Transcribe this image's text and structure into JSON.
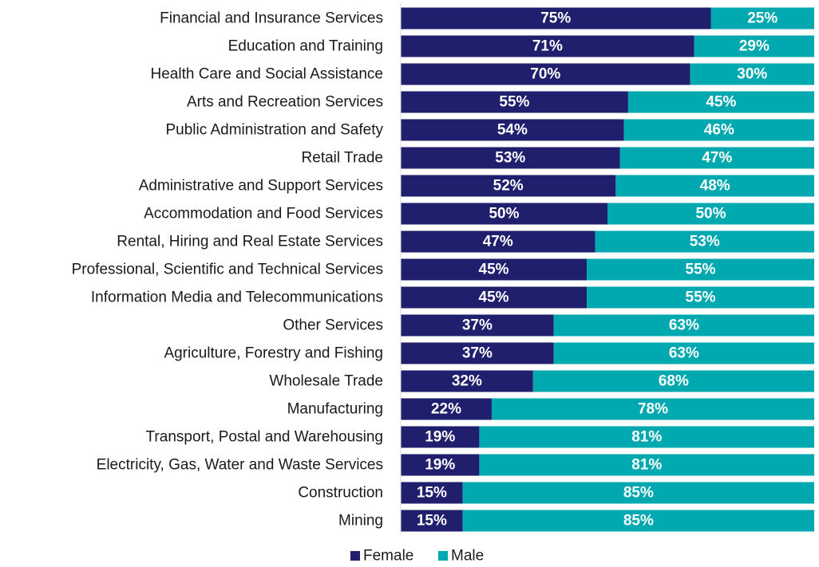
{
  "chart_data": {
    "type": "bar",
    "orientation": "horizontal",
    "stacked": true,
    "categories": [
      "Financial and Insurance Services",
      "Education and Training",
      "Health Care and Social Assistance",
      "Arts and Recreation Services",
      "Public Administration and Safety",
      "Retail Trade",
      "Administrative and Support Services",
      "Accommodation and Food Services",
      "Rental, Hiring and Real Estate Services",
      "Professional, Scientific and Technical Services",
      "Information Media and Telecommunications",
      "Other Services",
      "Agriculture, Forestry and Fishing",
      "Wholesale Trade",
      "Manufacturing",
      "Transport, Postal and Warehousing",
      "Electricity, Gas, Water and Waste Services",
      "Construction",
      "Mining"
    ],
    "series": [
      {
        "name": "Female",
        "color": "#1f1f6e",
        "values": [
          75,
          71,
          70,
          55,
          54,
          53,
          52,
          50,
          47,
          45,
          45,
          37,
          37,
          32,
          22,
          19,
          19,
          15,
          15
        ],
        "labels": [
          "75%",
          "71%",
          "70%",
          "55%",
          "54%",
          "53%",
          "52%",
          "50%",
          "47%",
          "45%",
          "45%",
          "37%",
          "37%",
          "32%",
          "22%",
          "19%",
          "19%",
          "15%",
          "15%"
        ]
      },
      {
        "name": "Male",
        "color": "#00a8b0",
        "values": [
          25,
          29,
          30,
          45,
          46,
          47,
          48,
          50,
          53,
          55,
          55,
          63,
          63,
          68,
          78,
          81,
          81,
          85,
          85
        ],
        "labels": [
          "25%",
          "29%",
          "30%",
          "45%",
          "46%",
          "47%",
          "48%",
          "50%",
          "53%",
          "55%",
          "55%",
          "63%",
          "63%",
          "68%",
          "78%",
          "81%",
          "81%",
          "85%",
          "85%"
        ]
      }
    ],
    "xlim": [
      0,
      100
    ],
    "grid": false,
    "legend_position": "bottom"
  }
}
